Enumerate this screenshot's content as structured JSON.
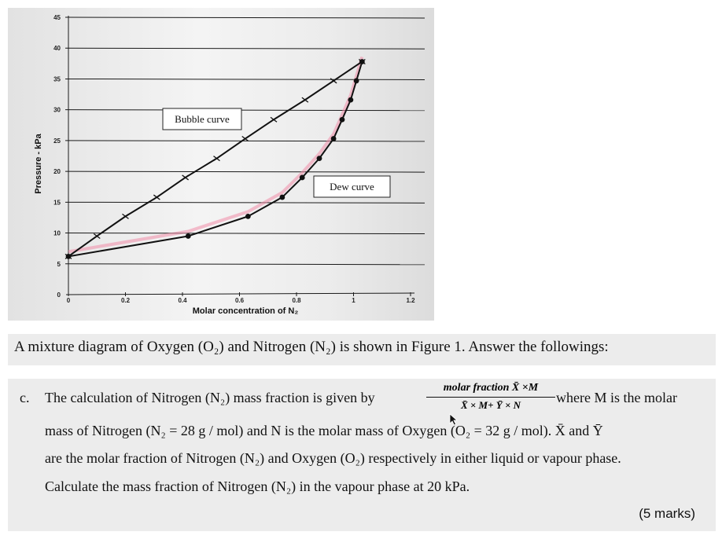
{
  "chart_data": {
    "type": "line",
    "title": "",
    "xlabel": "Molar concentration of N₂",
    "ylabel": "Pressure - kPa",
    "xlim": [
      0,
      1.2
    ],
    "ylim": [
      0,
      45
    ],
    "x_ticks": [
      "0",
      "0.2",
      "0.4",
      "0.6",
      "0.8",
      "1",
      "1.2"
    ],
    "y_ticks": [
      "0",
      "5",
      "10",
      "15",
      "20",
      "25",
      "30",
      "35",
      "40",
      "45"
    ],
    "grid": true,
    "series": [
      {
        "name": "Bubble curve",
        "marker": "cross",
        "color": "#111111",
        "points": [
          [
            0,
            6.2
          ],
          [
            0.1,
            9.5
          ],
          [
            0.2,
            12.7
          ],
          [
            0.31,
            15.8
          ],
          [
            0.41,
            19
          ],
          [
            0.52,
            22.1
          ],
          [
            0.62,
            25.3
          ],
          [
            0.72,
            28.4
          ],
          [
            0.83,
            31.6
          ],
          [
            0.93,
            34.7
          ],
          [
            1.03,
            37.8
          ]
        ]
      },
      {
        "name": "Dew curve",
        "marker": "dot",
        "color": "#111111",
        "points": [
          [
            0,
            6.2
          ],
          [
            0.42,
            9.5
          ],
          [
            0.63,
            12.7
          ],
          [
            0.75,
            15.8
          ],
          [
            0.82,
            19
          ],
          [
            0.88,
            22.1
          ],
          [
            0.93,
            25.3
          ],
          [
            0.96,
            28.4
          ],
          [
            0.99,
            31.6
          ],
          [
            1.01,
            34.7
          ],
          [
            1.03,
            37.8
          ]
        ]
      }
    ],
    "annotations": [
      {
        "text": "Bubble curve"
      },
      {
        "text": "Dew curve"
      }
    ],
    "highlight_color": "#f08ca8"
  },
  "question": {
    "intro": "A mixture diagram of Oxygen (O₂) and Nitrogen (N₂) is shown in Figure 1. Answer the followings:",
    "letter": "c.",
    "line1_a": "The calculation of Nitrogen (N₂) mass fraction is given by",
    "fraction_numerator": "molar fraction X̄ ×M",
    "fraction_denominator": "X̄ × M+ Ȳ × N",
    "line1_b": "where M is the molar",
    "line2": "mass of Nitrogen (N₂ = 28 g / mol) and N is the molar mass of Oxygen (O₂ = 32 g / mol). X̄ and Ȳ",
    "line3": "are the molar fraction of Nitrogen (N₂) and Oxygen (O₂) respectively in either liquid or vapour phase.",
    "line4": "Calculate the mass fraction of Nitrogen (N₂) in the vapour phase at 20 kPa.",
    "marks": "(5 marks)"
  }
}
